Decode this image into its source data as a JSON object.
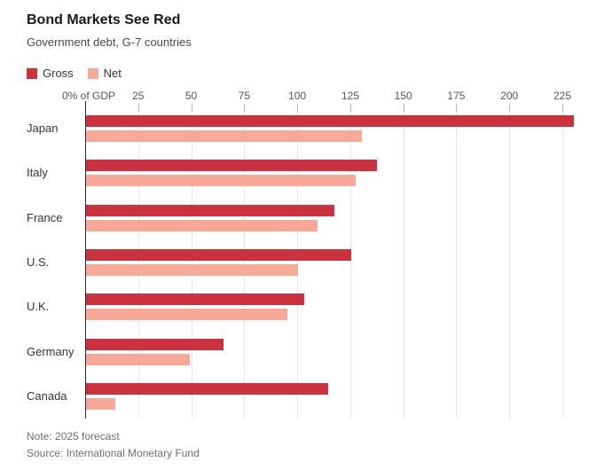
{
  "header": {
    "title": "Bond Markets See Red",
    "subtitle": "Government debt, G-7 countries"
  },
  "legend": {
    "items": [
      {
        "label": "Gross",
        "color": "#cc313e"
      },
      {
        "label": "Net",
        "color": "#f7a896"
      }
    ]
  },
  "footer": {
    "note": "Note: 2025 forecast",
    "source": "Source: International Monetary Fund"
  },
  "chart_data": {
    "type": "bar",
    "orientation": "horizontal",
    "title": "Bond Markets See Red",
    "subtitle": "Government debt, G-7 countries",
    "categories": [
      "Japan",
      "Italy",
      "France",
      "U.S.",
      "U.K.",
      "Germany",
      "Canada"
    ],
    "series": [
      {
        "name": "Gross",
        "color": "#cc313e",
        "values": [
          230,
          137,
          117,
          125,
          103,
          65,
          114
        ]
      },
      {
        "name": "Net",
        "color": "#f7a896",
        "values": [
          130,
          127,
          109,
          100,
          95,
          49,
          14
        ]
      }
    ],
    "xlabel": "% of GDP",
    "xlim": [
      0,
      225
    ],
    "xticks": [
      0,
      25,
      50,
      75,
      100,
      125,
      150,
      175,
      200,
      225
    ],
    "xtick_labels": [
      "0% of GDP",
      "25",
      "50",
      "75",
      "100",
      "125",
      "150",
      "175",
      "200",
      "225"
    ],
    "grid": true,
    "legend_position": "top-left",
    "note": "Note: 2025 forecast",
    "source": "Source: International Monetary Fund"
  }
}
